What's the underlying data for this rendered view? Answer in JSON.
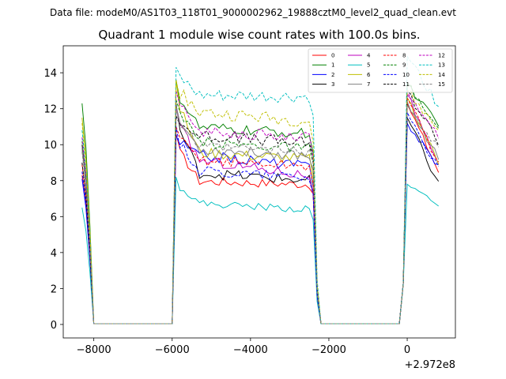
{
  "suptitle": "Data file: modeM0/AS1T03_118T01_9000002962_19888cztM0_level2_quad_clean.evt",
  "chart_data": {
    "type": "line",
    "title": "Quadrant 1 module wise count rates with 100.0s bins.",
    "xlabel": "",
    "ylabel": "",
    "x_offset_label": "+2.972e8",
    "xlim": [
      -8780,
      1230
    ],
    "ylim": [
      -0.75,
      15.5
    ],
    "xticks": [
      -8000,
      -6000,
      -4000,
      -2000,
      0
    ],
    "xtick_labels": [
      "−8000",
      "−6000",
      "−4000",
      "−2000",
      "0"
    ],
    "yticks": [
      0,
      2,
      4,
      6,
      8,
      10,
      12,
      14
    ],
    "ytick_labels": [
      "0",
      "2",
      "4",
      "6",
      "8",
      "10",
      "12",
      "14"
    ],
    "legend_position": "top-right",
    "legend_columns": 4,
    "series": [
      {
        "name": "0",
        "color": "#ff0000",
        "dash": false,
        "start": 8.3,
        "peak": 10.6,
        "level": 8.0,
        "late": 7.8,
        "end": 8.5,
        "end_peak": 12.3,
        "jitter": 0.25
      },
      {
        "name": "1",
        "color": "#008000",
        "dash": false,
        "start": 12.3,
        "peak": 13.6,
        "level": 11.0,
        "late": 10.6,
        "end": 11.0,
        "end_peak": 13.4,
        "jitter": 0.3
      },
      {
        "name": "2",
        "color": "#0000ff",
        "dash": false,
        "start": 8.1,
        "peak": 10.5,
        "level": 9.5,
        "late": 8.8,
        "end": 8.8,
        "end_peak": 11.2,
        "jitter": 0.3
      },
      {
        "name": "3",
        "color": "#000000",
        "dash": false,
        "start": 10.0,
        "peak": 12.3,
        "level": 8.5,
        "late": 8.0,
        "end": 7.8,
        "end_peak": 11.5,
        "jitter": 0.3
      },
      {
        "name": "4",
        "color": "#bf00bf",
        "dash": false,
        "start": 9.8,
        "peak": 12.1,
        "level": 9.3,
        "late": 8.3,
        "end": 8.7,
        "end_peak": 12.8,
        "jitter": 0.3
      },
      {
        "name": "5",
        "color": "#00bfbf",
        "dash": false,
        "start": 6.5,
        "peak": 8.2,
        "level": 6.8,
        "late": 6.4,
        "end": 6.7,
        "end_peak": 7.8,
        "jitter": 0.2
      },
      {
        "name": "6",
        "color": "#bfbf00",
        "dash": false,
        "start": 11.5,
        "peak": 13.6,
        "level": 9.6,
        "late": 9.2,
        "end": 9.0,
        "end_peak": 12.6,
        "jitter": 0.3
      },
      {
        "name": "7",
        "color": "#808080",
        "dash": false,
        "start": 9.8,
        "peak": 12.2,
        "level": 9.8,
        "late": 9.4,
        "end": 9.2,
        "end_peak": 12.4,
        "jitter": 0.3
      },
      {
        "name": "8",
        "color": "#ff0000",
        "dash": true,
        "start": 8.9,
        "peak": 11.0,
        "level": 9.2,
        "late": 8.8,
        "end": 9.0,
        "end_peak": 12.6,
        "jitter": 0.3
      },
      {
        "name": "9",
        "color": "#008000",
        "dash": true,
        "start": 10.2,
        "peak": 12.5,
        "level": 10.2,
        "late": 9.8,
        "end": 10.8,
        "end_peak": 13.4,
        "jitter": 0.3
      },
      {
        "name": "10",
        "color": "#0000ff",
        "dash": true,
        "start": 8.5,
        "peak": 11.0,
        "level": 8.6,
        "late": 8.2,
        "end": 8.6,
        "end_peak": 11.8,
        "jitter": 0.3
      },
      {
        "name": "11",
        "color": "#000000",
        "dash": true,
        "start": 9.0,
        "peak": 11.6,
        "level": 10.6,
        "late": 10.1,
        "end": 10.2,
        "end_peak": 13.0,
        "jitter": 0.35
      },
      {
        "name": "12",
        "color": "#bf00bf",
        "dash": true,
        "start": 10.4,
        "peak": 13.0,
        "level": 10.8,
        "late": 10.4,
        "end": 10.5,
        "end_peak": 13.0,
        "jitter": 0.3
      },
      {
        "name": "13",
        "color": "#00bfbf",
        "dash": true,
        "start": 10.8,
        "peak": 14.3,
        "level": 12.7,
        "late": 12.6,
        "end": 12.2,
        "end_peak": 14.9,
        "jitter": 0.35
      },
      {
        "name": "14",
        "color": "#bfbf00",
        "dash": true,
        "start": 11.2,
        "peak": 13.6,
        "level": 11.9,
        "late": 11.3,
        "end": 10.8,
        "end_peak": 13.0,
        "jitter": 0.35
      },
      {
        "name": "15",
        "color": "#808080",
        "dash": true,
        "start": 9.6,
        "peak": 12.0,
        "level": 9.9,
        "late": 9.6,
        "end": 9.8,
        "end_peak": 12.2,
        "jitter": 0.3
      }
    ]
  }
}
